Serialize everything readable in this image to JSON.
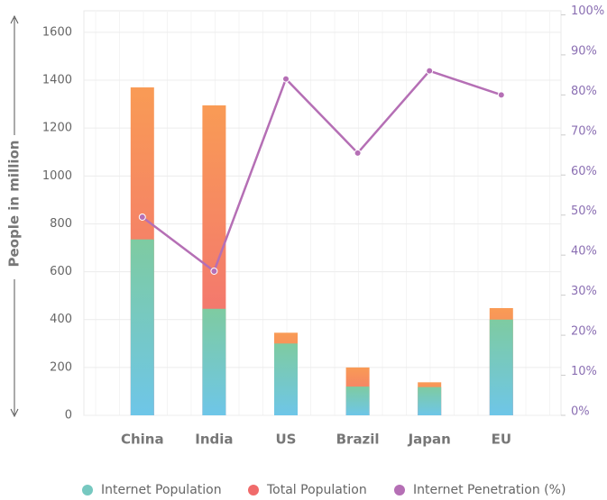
{
  "chart_data": {
    "type": "bar",
    "y_label": "People in million",
    "categories": [
      "China",
      "India",
      "US",
      "Brazil",
      "Japan",
      "EU"
    ],
    "series": [
      {
        "name": "Internet Population",
        "color": "#76c8c0",
        "gradient": [
          "#7ecba1",
          "#6ec6e8"
        ],
        "values": [
          735,
          445,
          300,
          120,
          118,
          400
        ]
      },
      {
        "name": "Total Population",
        "color": "#f06b6b",
        "gradient": [
          "#f99b55",
          "#f0677a"
        ],
        "values": [
          1370,
          1295,
          345,
          200,
          138,
          448
        ]
      },
      {
        "name": "Internet Penetration (%)",
        "color": "#b56fb5",
        "type": "line",
        "axis": "y2",
        "values": [
          49.5,
          36,
          84,
          65.5,
          86,
          80
        ]
      }
    ],
    "ylim": [
      0,
      1690
    ],
    "yticks": [
      0,
      200,
      400,
      600,
      800,
      1000,
      1200,
      1400,
      1600
    ],
    "y2lim": [
      0,
      101
    ],
    "y2ticks": [
      {
        "value": 0,
        "label": "0%"
      },
      {
        "value": 10,
        "label": "10%"
      },
      {
        "value": 20,
        "label": "20%"
      },
      {
        "value": 30,
        "label": "30%"
      },
      {
        "value": 40,
        "label": "40%"
      },
      {
        "value": 50,
        "label": "50%"
      },
      {
        "value": 60,
        "label": "60%"
      },
      {
        "value": 70,
        "label": "70%"
      },
      {
        "value": 80,
        "label": "80%"
      },
      {
        "value": 90,
        "label": "90%"
      },
      {
        "value": 100,
        "label": "100%"
      }
    ],
    "grid": true
  }
}
